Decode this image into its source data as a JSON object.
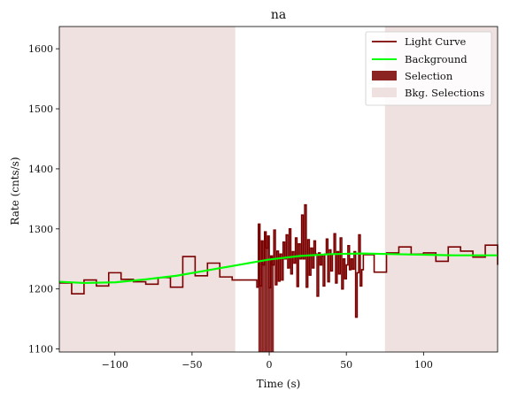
{
  "chart_data": {
    "type": "line",
    "title": "na",
    "xlabel": "Time (s)",
    "ylabel": "Rate (cnts/s)",
    "xlim": [
      -136,
      148
    ],
    "ylim": [
      1095,
      1637
    ],
    "x_ticks": [
      -100,
      -50,
      0,
      50,
      100
    ],
    "y_ticks": [
      1100,
      1200,
      1300,
      1400,
      1500,
      1600
    ],
    "x_tick_labels": [
      "−100",
      "−50",
      "0",
      "50",
      "100"
    ],
    "y_tick_labels": [
      "1100",
      "1200",
      "1300",
      "1400",
      "1500",
      "1600"
    ],
    "grid": false,
    "legend": {
      "position": "top-right",
      "entries": [
        "Light Curve",
        "Background",
        "Selection",
        "Bkg. Selections"
      ]
    },
    "colors": {
      "light_curve": "#7a0000",
      "background": "#00ff00",
      "selection": "#8b2323",
      "bkg_selection": "#f0e1e1"
    },
    "selection": [
      -7,
      3
    ],
    "bkg_selections": [
      [
        -136,
        -22
      ],
      [
        75,
        148
      ]
    ],
    "light_curve": {
      "edges": [
        -136,
        -128,
        -120,
        -112,
        -104,
        -96,
        -88,
        -80,
        -72,
        -64,
        -56,
        -48,
        -40,
        -32,
        -24,
        -16,
        -8,
        -7,
        -6,
        -5,
        -4,
        -3,
        -2,
        -1,
        0,
        1,
        2,
        3,
        4,
        5,
        6,
        7,
        8,
        9,
        10,
        11,
        12,
        13,
        14,
        15,
        16,
        17,
        18,
        19,
        20,
        21,
        22,
        23,
        24,
        25,
        26,
        27,
        28,
        29,
        30,
        31,
        32,
        33,
        34,
        35,
        36,
        37,
        38,
        39,
        40,
        41,
        42,
        43,
        44,
        45,
        46,
        47,
        48,
        49,
        50,
        51,
        52,
        53,
        54,
        55,
        56,
        57,
        58,
        59,
        60,
        61,
        62,
        68,
        76,
        84,
        92,
        100,
        108,
        116,
        124,
        132,
        140,
        148
      ],
      "rates": [
        1210,
        1192,
        1215,
        1205,
        1227,
        1216,
        1212,
        1208,
        1219,
        1203,
        1254,
        1222,
        1243,
        1220,
        1215,
        1215,
        1203,
        1308,
        1205,
        1280,
        1240,
        1295,
        1268,
        1288,
        1202,
        1255,
        1240,
        1298,
        1207,
        1263,
        1213,
        1258,
        1215,
        1278,
        1250,
        1290,
        1235,
        1300,
        1225,
        1262,
        1243,
        1285,
        1204,
        1275,
        1250,
        1323,
        1250,
        1340,
        1203,
        1282,
        1223,
        1268,
        1235,
        1280,
        1258,
        1188,
        1260,
        1240,
        1255,
        1205,
        1258,
        1283,
        1212,
        1265,
        1230,
        1258,
        1292,
        1210,
        1262,
        1225,
        1285,
        1200,
        1250,
        1217,
        1240,
        1272,
        1232,
        1250,
        1233,
        1262,
        1153,
        1227,
        1290,
        1205,
        1232,
        1258,
        1257,
        1228,
        1260,
        1270,
        1258,
        1260,
        1246,
        1270,
        1263,
        1253,
        1273,
        1240
      ]
    },
    "background_curve": {
      "x": [
        -136,
        -120,
        -100,
        -80,
        -60,
        -40,
        -20,
        0,
        20,
        40,
        60,
        80,
        100,
        120,
        148
      ],
      "y": [
        1212,
        1210,
        1211,
        1216,
        1222,
        1231,
        1240,
        1249,
        1255,
        1258,
        1259,
        1258,
        1257,
        1256,
        1256
      ]
    }
  }
}
